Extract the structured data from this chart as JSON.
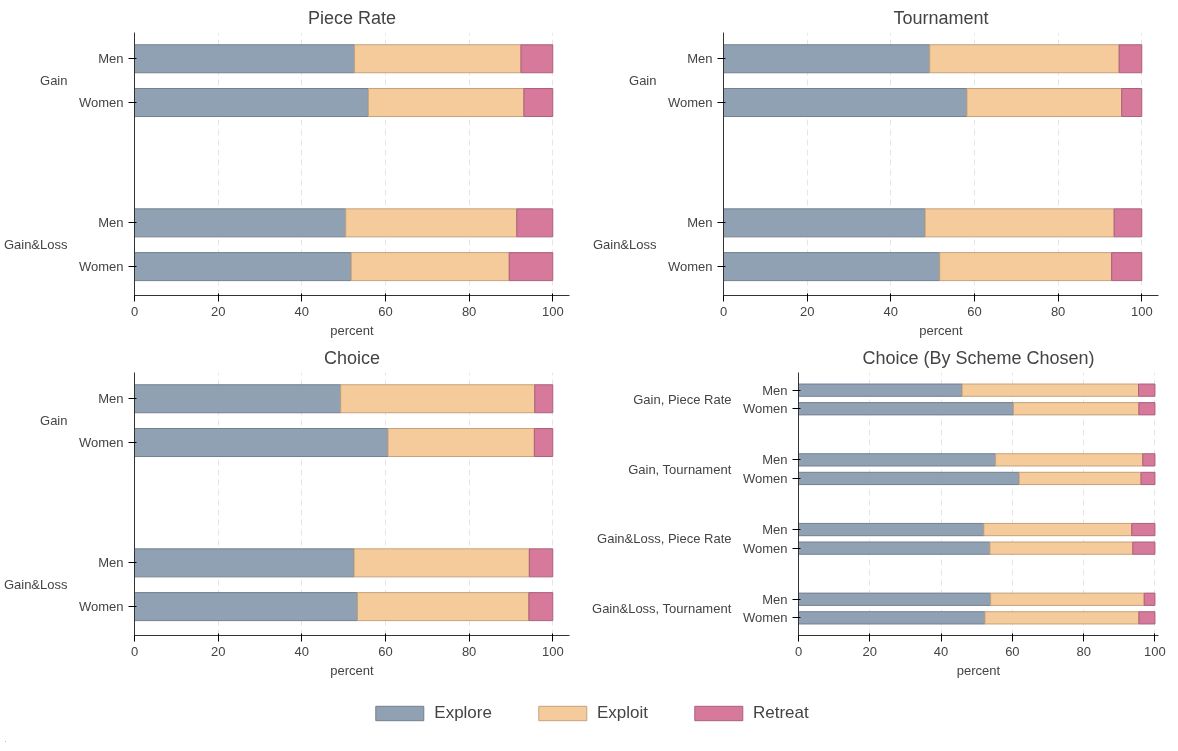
{
  "chart_data": [
    {
      "type": "bar",
      "orientation": "horizontal",
      "stacked": true,
      "title": "Piece Rate",
      "xlabel": "percent",
      "categories": [
        "Men",
        "Women",
        "Men",
        "Women"
      ],
      "annotations": [
        "Gain",
        "Gain&Loss"
      ],
      "xlim": [
        0,
        104
      ],
      "xticks": [
        0,
        20,
        40,
        60,
        80,
        100
      ],
      "grid": "x",
      "legend": "bottom",
      "series": [
        {
          "name": "Explore",
          "color": "#8fa1b3",
          "values": [
            52.6,
            55.9,
            50.5,
            51.8
          ]
        },
        {
          "name": "Exploit",
          "color": "#f5cb9b",
          "values": [
            39.8,
            37.2,
            40.9,
            37.8
          ]
        },
        {
          "name": "Retreat",
          "color": "#d6799b",
          "values": [
            7.6,
            6.9,
            8.6,
            10.4
          ]
        }
      ]
    },
    {
      "type": "bar",
      "orientation": "horizontal",
      "stacked": true,
      "title": "Tournament",
      "xlabel": "percent",
      "categories": [
        "Men",
        "Women",
        "Men",
        "Women"
      ],
      "annotations": [
        "Gain",
        "Gain&Loss"
      ],
      "xlim": [
        0,
        104
      ],
      "xticks": [
        0,
        20,
        40,
        60,
        80,
        100
      ],
      "grid": "x",
      "series": [
        {
          "color": "#8fa1b3",
          "values": [
            49.3,
            58.2,
            48.2,
            51.7
          ]
        },
        {
          "color": "#f5cb9b",
          "values": [
            45.3,
            37.0,
            45.2,
            41.1
          ]
        },
        {
          "color": "#d6799b",
          "values": [
            5.4,
            4.8,
            6.6,
            7.2
          ]
        }
      ]
    },
    {
      "type": "bar",
      "orientation": "horizontal",
      "stacked": true,
      "title": "Choice",
      "xlabel": "percent",
      "categories": [
        "Men",
        "Women",
        "Men",
        "Women"
      ],
      "annotations": [
        "Gain",
        "Gain&Loss"
      ],
      "xlim": [
        0,
        104
      ],
      "xticks": [
        0,
        20,
        40,
        60,
        80,
        100
      ],
      "grid": "x",
      "series": [
        {
          "color": "#8fa1b3",
          "values": [
            49.3,
            60.6,
            52.5,
            53.3
          ]
        },
        {
          "color": "#f5cb9b",
          "values": [
            46.4,
            35.0,
            41.9,
            41.0
          ]
        },
        {
          "color": "#d6799b",
          "values": [
            4.3,
            4.4,
            5.6,
            5.7
          ]
        }
      ]
    },
    {
      "type": "bar",
      "orientation": "horizontal",
      "stacked": true,
      "title": "Choice (By Scheme Chosen)",
      "xlabel": "percent",
      "categories": [
        "Men",
        "Women",
        "Men",
        "Women",
        "Men",
        "Women",
        "Men",
        "Women"
      ],
      "annotations": [
        "Gain, Piece Rate",
        "Gain, Tournament",
        "Gain&Loss, Piece Rate",
        "Gain&Loss, Tournament"
      ],
      "xlim": [
        0,
        101
      ],
      "xticks": [
        0,
        20,
        40,
        60,
        80,
        100
      ],
      "grid": "x",
      "series": [
        {
          "color": "#8fa1b3",
          "values": [
            45.9,
            60.3,
            55.3,
            61.9,
            52.0,
            53.7,
            53.9,
            52.3
          ]
        },
        {
          "color": "#f5cb9b",
          "values": [
            49.5,
            35.2,
            41.3,
            34.2,
            41.5,
            40.1,
            43.1,
            43.2
          ]
        },
        {
          "color": "#d6799b",
          "values": [
            4.6,
            4.5,
            3.4,
            3.9,
            6.5,
            6.2,
            3.0,
            4.5
          ]
        }
      ]
    }
  ]
}
